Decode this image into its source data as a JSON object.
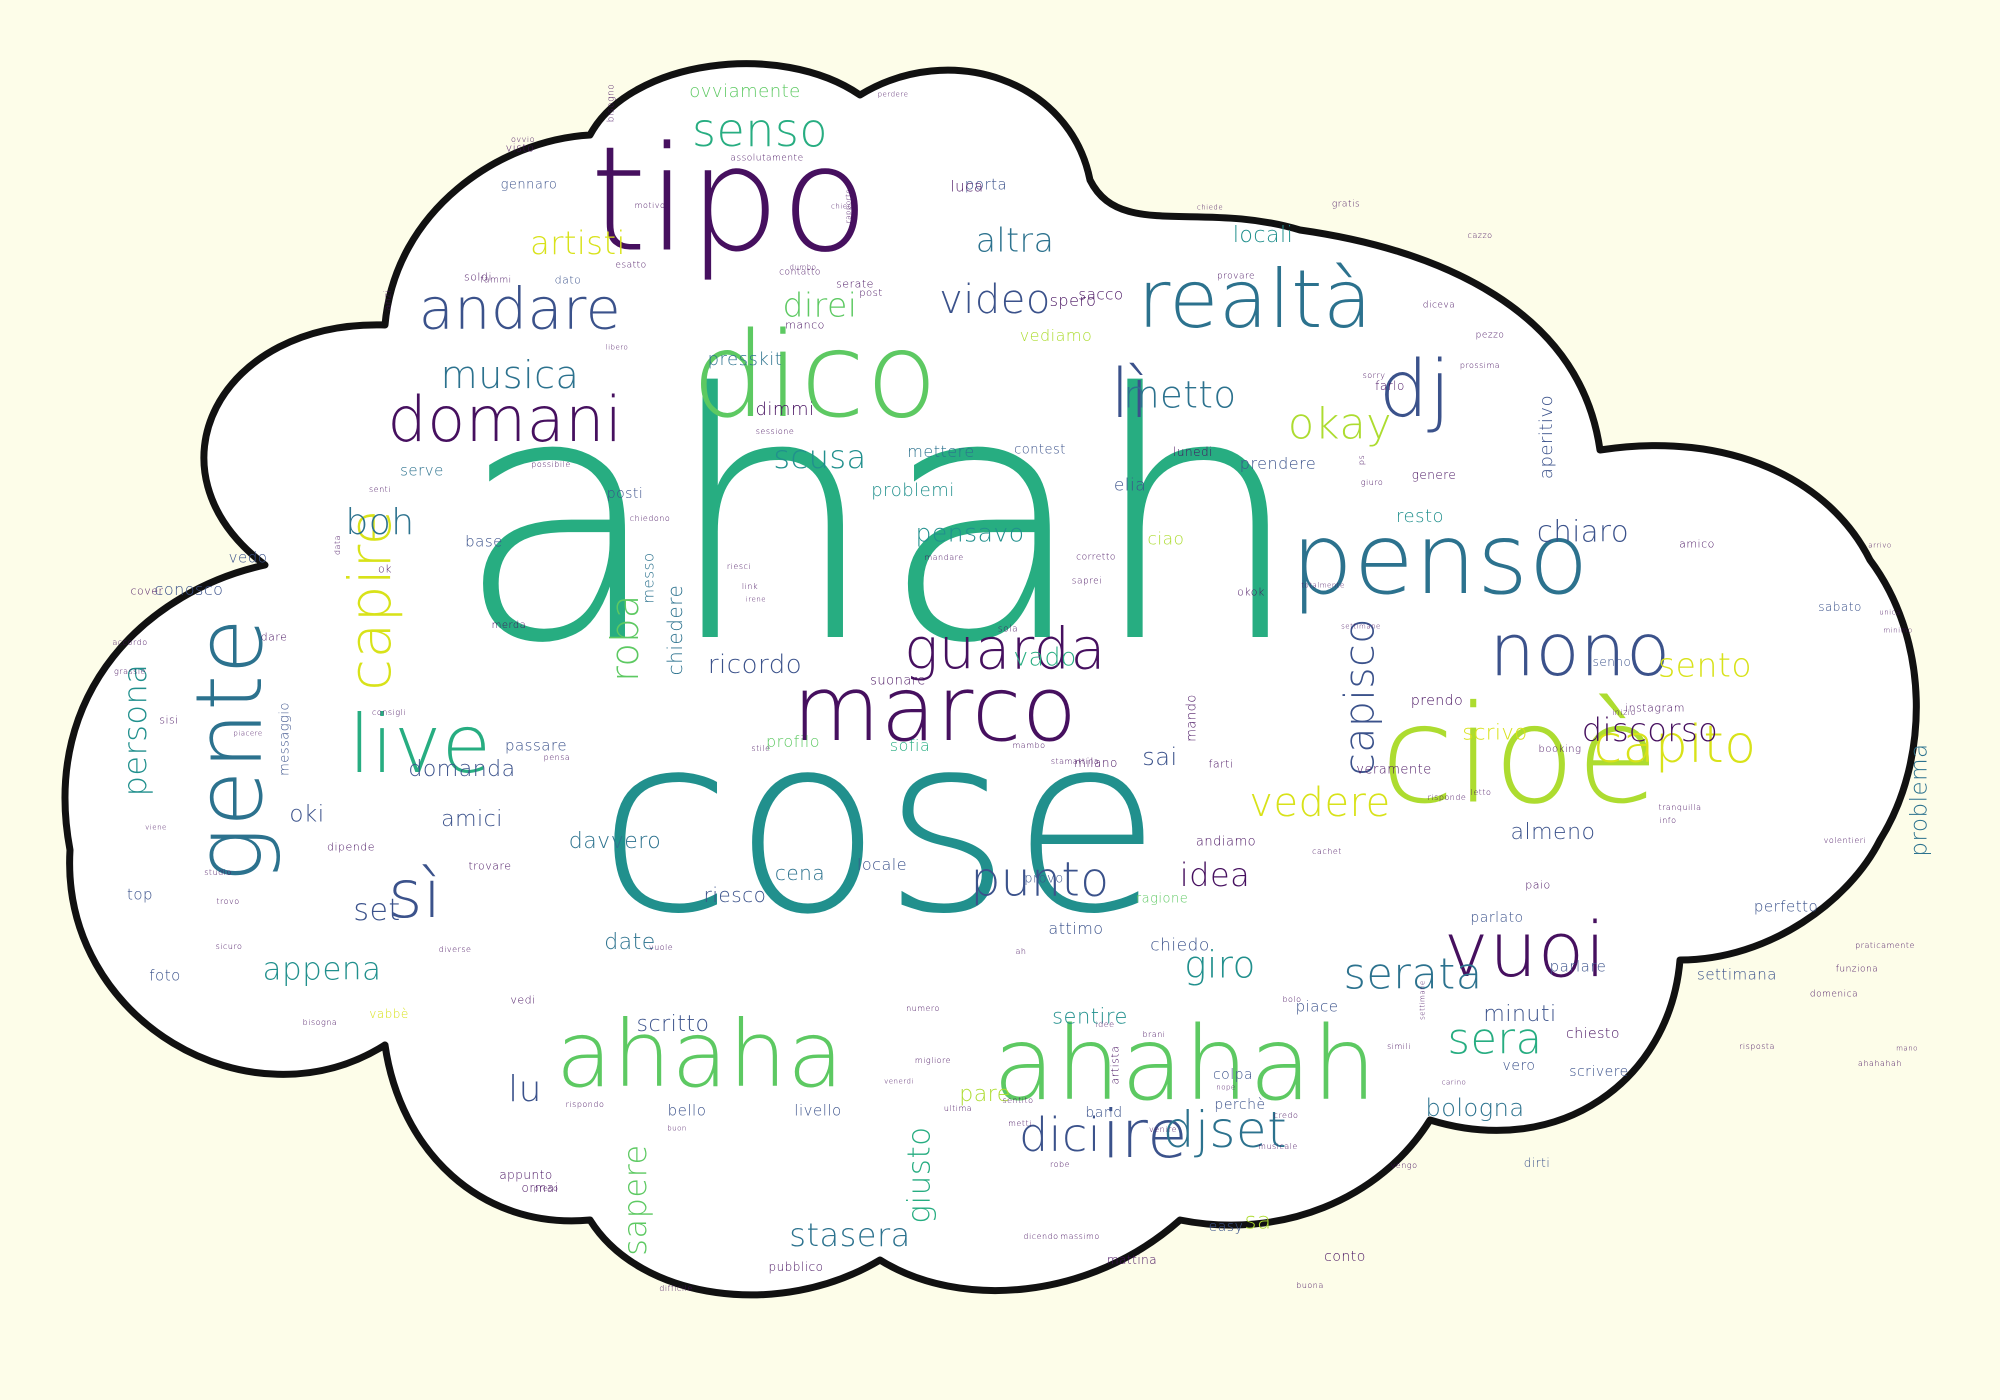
{
  "palette": {
    "background": "#fdfde9",
    "cloud_fill": "#ffffff",
    "cloud_outline": "#111111",
    "word_colors": [
      "#46105f",
      "#3b528b",
      "#2c728e",
      "#21908d",
      "#27ad81",
      "#5dc962",
      "#addc30",
      "#d8e219"
    ]
  },
  "words": [
    {
      "text": "ahah",
      "weight": 100,
      "c": 4
    },
    {
      "text": "cose",
      "weight": 86,
      "c": 3
    },
    {
      "text": "cioè",
      "weight": 55,
      "c": 6
    },
    {
      "text": "tipo",
      "weight": 52,
      "c": 0
    },
    {
      "text": "ahahah",
      "weight": 45,
      "c": 5
    },
    {
      "text": "dico",
      "weight": 42,
      "c": 5
    },
    {
      "text": "marco",
      "weight": 36,
      "c": 0
    },
    {
      "text": "penso",
      "weight": 36,
      "c": 2
    },
    {
      "text": "ahaha",
      "weight": 35,
      "c": 5
    },
    {
      "text": "gente",
      "weight": 35,
      "c": 2
    },
    {
      "text": "realtà",
      "weight": 33,
      "c": 2
    },
    {
      "text": "vuoi",
      "weight": 31,
      "c": 0
    },
    {
      "text": "live",
      "weight": 30,
      "c": 4
    },
    {
      "text": "dj",
      "weight": 30,
      "c": 1
    },
    {
      "text": "nono",
      "weight": 30,
      "c": 1
    },
    {
      "text": "domani",
      "weight": 28,
      "c": 0
    },
    {
      "text": "andare",
      "weight": 27,
      "c": 1
    },
    {
      "text": "sì",
      "weight": 27,
      "c": 1
    },
    {
      "text": "capire",
      "weight": 26,
      "c": 7
    },
    {
      "text": "guarda",
      "weight": 25,
      "c": 0
    },
    {
      "text": "lì",
      "weight": 25,
      "c": 1
    },
    {
      "text": "ire",
      "weight": 24,
      "c": 1
    },
    {
      "text": "senso",
      "weight": 22,
      "c": 4
    },
    {
      "text": "djset",
      "weight": 22,
      "c": 2
    },
    {
      "text": "capito",
      "weight": 22,
      "c": 7
    },
    {
      "text": "punto",
      "weight": 22,
      "c": 1
    },
    {
      "text": "serata",
      "weight": 20,
      "c": 2
    },
    {
      "text": "sera",
      "weight": 20,
      "c": 4
    },
    {
      "text": "musica",
      "weight": 20,
      "c": 2
    },
    {
      "text": "video",
      "weight": 20,
      "c": 1
    },
    {
      "text": "persona",
      "weight": 20,
      "c": 3
    },
    {
      "text": "vedere",
      "weight": 19,
      "c": 7
    },
    {
      "text": "metto",
      "weight": 19,
      "c": 2
    },
    {
      "text": "dici",
      "weight": 19,
      "c": 1
    },
    {
      "text": "artisti",
      "weight": 19,
      "c": 7
    },
    {
      "text": "okay",
      "weight": 18,
      "c": 6
    },
    {
      "text": "scusa",
      "weight": 18,
      "c": 3
    },
    {
      "text": "capisco",
      "weight": 18,
      "c": 1
    },
    {
      "text": "altra",
      "weight": 18,
      "c": 2
    },
    {
      "text": "giro",
      "weight": 18,
      "c": 3
    },
    {
      "text": "sento",
      "weight": 18,
      "c": 7
    },
    {
      "text": "discorso",
      "weight": 17,
      "c": 0
    },
    {
      "text": "roba",
      "weight": 17,
      "c": 5
    },
    {
      "text": "direi",
      "weight": 17,
      "c": 5
    },
    {
      "text": "stasera",
      "weight": 17,
      "c": 2
    },
    {
      "text": "sapere",
      "weight": 17,
      "c": 5
    },
    {
      "text": "boh",
      "weight": 17,
      "c": 2
    },
    {
      "text": "appena",
      "weight": 17,
      "c": 3
    },
    {
      "text": "set",
      "weight": 16,
      "c": 1
    },
    {
      "text": "pensavo",
      "weight": 16,
      "c": 3
    },
    {
      "text": "ricordo",
      "weight": 16,
      "c": 1
    },
    {
      "text": "idea",
      "weight": 16,
      "c": 0
    },
    {
      "text": "lu",
      "weight": 16,
      "c": 1
    },
    {
      "text": "chiaro",
      "weight": 16,
      "c": 1
    },
    {
      "text": "giusto",
      "weight": 15,
      "c": 4
    },
    {
      "text": "bologna",
      "weight": 14,
      "c": 2
    },
    {
      "text": "sa",
      "weight": 14,
      "c": 6
    },
    {
      "text": "sai",
      "weight": 14,
      "c": 1
    },
    {
      "text": "oki",
      "weight": 14,
      "c": 1
    },
    {
      "text": "vado",
      "weight": 14,
      "c": 4
    },
    {
      "text": "davvero",
      "weight": 13,
      "c": 2
    },
    {
      "text": "scritto",
      "weight": 13,
      "c": 1
    },
    {
      "text": "date",
      "weight": 13,
      "c": 2
    },
    {
      "text": "domanda",
      "weight": 13,
      "c": 1
    },
    {
      "text": "problema",
      "weight": 13,
      "c": 2
    },
    {
      "text": "scrivo",
      "weight": 13,
      "c": 7
    },
    {
      "text": "amici",
      "weight": 13,
      "c": 1
    },
    {
      "text": "almeno",
      "weight": 13,
      "c": 1
    },
    {
      "text": "chiedere",
      "weight": 12,
      "c": 2
    },
    {
      "text": "sentire",
      "weight": 12,
      "c": 3
    },
    {
      "text": "cena",
      "weight": 12,
      "c": 2
    },
    {
      "text": "riesco",
      "weight": 12,
      "c": 1
    },
    {
      "text": "problemi",
      "weight": 12,
      "c": 3
    },
    {
      "text": "aperitivo",
      "weight": 12,
      "c": 1
    },
    {
      "text": "locali",
      "weight": 12,
      "c": 3
    },
    {
      "text": "minuti",
      "weight": 12,
      "c": 1
    },
    {
      "text": "presskit",
      "weight": 12,
      "c": 2
    },
    {
      "text": "ovviamente",
      "weight": 11,
      "c": 5
    },
    {
      "text": "pare",
      "weight": 11,
      "c": 6
    },
    {
      "text": "elia",
      "weight": 11,
      "c": 1
    },
    {
      "text": "resto",
      "weight": 11,
      "c": 3
    },
    {
      "text": "dimmi",
      "weight": 11,
      "c": 0
    },
    {
      "text": "vediamo",
      "weight": 11,
      "c": 6
    },
    {
      "text": "profilo",
      "weight": 11,
      "c": 5
    },
    {
      "text": "conosco",
      "weight": 10,
      "c": 1
    },
    {
      "text": "attimo",
      "weight": 10,
      "c": 1
    },
    {
      "text": "chiedo",
      "weight": 10,
      "c": 1
    },
    {
      "text": "spero",
      "weight": 10,
      "c": 0
    },
    {
      "text": "locale",
      "weight": 10,
      "c": 1
    },
    {
      "text": "serve",
      "weight": 10,
      "c": 2
    },
    {
      "text": "messo",
      "weight": 10,
      "c": 2
    },
    {
      "text": "posti",
      "weight": 10,
      "c": 1
    },
    {
      "text": "base",
      "weight": 10,
      "c": 1
    },
    {
      "text": "mettere",
      "weight": 10,
      "c": 2
    },
    {
      "text": "prendere",
      "weight": 10,
      "c": 1
    },
    {
      "text": "settimana",
      "weight": 9,
      "c": 1
    },
    {
      "text": "parlare",
      "weight": 9,
      "c": 1
    },
    {
      "text": "passare",
      "weight": 9,
      "c": 1
    },
    {
      "text": "porta",
      "weight": 9,
      "c": 1
    },
    {
      "text": "luca",
      "weight": 9,
      "c": 0
    },
    {
      "text": "ciao",
      "weight": 9,
      "c": 6
    },
    {
      "text": "sofia",
      "weight": 9,
      "c": 4
    },
    {
      "text": "perfetto",
      "weight": 9,
      "c": 1
    },
    {
      "text": "foto",
      "weight": 9,
      "c": 1
    },
    {
      "text": "top",
      "weight": 9,
      "c": 1
    },
    {
      "text": "vedo",
      "weight": 9,
      "c": 1
    },
    {
      "text": "piace",
      "weight": 9,
      "c": 1
    },
    {
      "text": "bello",
      "weight": 9,
      "c": 1
    },
    {
      "text": "livello",
      "weight": 9,
      "c": 1
    },
    {
      "text": "sacco",
      "weight": 9,
      "c": 0
    },
    {
      "text": "vero",
      "weight": 9,
      "c": 1
    },
    {
      "text": "parlato",
      "weight": 8,
      "c": 1
    },
    {
      "text": "veramente",
      "weight": 8,
      "c": 0
    },
    {
      "text": "contest",
      "weight": 8,
      "c": 1
    },
    {
      "text": "provo",
      "weight": 8,
      "c": 1
    },
    {
      "text": "andiamo",
      "weight": 8,
      "c": 0
    },
    {
      "text": "prendo",
      "weight": 8,
      "c": 0
    },
    {
      "text": "scrivere",
      "weight": 9,
      "c": 1
    },
    {
      "text": "chiesto",
      "weight": 8,
      "c": 0
    },
    {
      "text": "colpa",
      "weight": 8,
      "c": 1
    },
    {
      "text": "band",
      "weight": 9,
      "c": 1
    },
    {
      "text": "perchè",
      "weight": 8,
      "c": 1
    },
    {
      "text": "conto",
      "weight": 8,
      "c": 0
    },
    {
      "text": "mando",
      "weight": 8,
      "c": 0
    },
    {
      "text": "easy",
      "weight": 8,
      "c": 1
    },
    {
      "text": "messaggio",
      "weight": 8,
      "c": 1
    },
    {
      "text": "gennaro",
      "weight": 8,
      "c": 1
    },
    {
      "text": "soldi",
      "weight": 7,
      "c": 0
    },
    {
      "text": "dato",
      "weight": 7,
      "c": 1
    },
    {
      "text": "sabato",
      "weight": 7,
      "c": 1
    },
    {
      "text": "amico",
      "weight": 7,
      "c": 0
    },
    {
      "text": "senno",
      "weight": 7,
      "c": 1
    },
    {
      "text": "milano",
      "weight": 7,
      "c": 0
    },
    {
      "text": "pubblico",
      "weight": 7,
      "c": 0
    },
    {
      "text": "appunto",
      "weight": 7,
      "c": 0
    },
    {
      "text": "ragione",
      "weight": 7,
      "c": 5
    },
    {
      "text": "suonare",
      "weight": 7,
      "c": 0
    },
    {
      "text": "dirti",
      "weight": 7,
      "c": 1
    },
    {
      "text": "ormai",
      "weight": 7,
      "c": 0
    },
    {
      "text": "lunedi",
      "weight": 7,
      "c": 0
    },
    {
      "text": "genere",
      "weight": 7,
      "c": 0
    },
    {
      "text": "farlo",
      "weight": 7,
      "c": 0
    },
    {
      "text": "dare",
      "weight": 6,
      "c": 0
    },
    {
      "text": "ok",
      "weight": 6,
      "c": 0
    },
    {
      "text": "sisi",
      "weight": 6,
      "c": 0
    },
    {
      "text": "cover",
      "weight": 6,
      "c": 0
    },
    {
      "text": "visto",
      "weight": 6,
      "c": 0
    },
    {
      "text": "mattina",
      "weight": 6,
      "c": 0
    },
    {
      "text": "vedi",
      "weight": 6,
      "c": 0
    },
    {
      "text": "farti",
      "weight": 6,
      "c": 0
    },
    {
      "text": "dipende",
      "weight": 6,
      "c": 0
    },
    {
      "text": "okok",
      "weight": 6,
      "c": 0
    },
    {
      "text": "trovare",
      "weight": 6,
      "c": 0
    },
    {
      "text": "merda",
      "weight": 6,
      "c": 0
    },
    {
      "text": "manco",
      "weight": 6,
      "c": 0
    },
    {
      "text": "vabbè",
      "weight": 6,
      "c": 7
    },
    {
      "text": "artista",
      "weight": 6,
      "c": 0
    },
    {
      "text": "paio",
      "weight": 6,
      "c": 0
    },
    {
      "text": "instagram",
      "weight": 6,
      "c": 0
    },
    {
      "text": "booking",
      "weight": 6,
      "c": 0
    },
    {
      "text": "fammi",
      "weight": 5,
      "c": 0
    },
    {
      "text": "esatto",
      "weight": 5,
      "c": 0
    },
    {
      "text": "contatto",
      "weight": 5,
      "c": 0
    },
    {
      "text": "provare",
      "weight": 5,
      "c": 0
    },
    {
      "text": "gratis",
      "weight": 5,
      "c": 0
    },
    {
      "text": "diceva",
      "weight": 5,
      "c": 0
    },
    {
      "text": "pezzo",
      "weight": 5,
      "c": 0
    },
    {
      "text": "bisogno",
      "weight": 5,
      "c": 0
    },
    {
      "text": "assolutamente",
      "weight": 5,
      "c": 0
    },
    {
      "text": "anzi",
      "weight": 5,
      "c": 0
    },
    {
      "text": "sessione",
      "weight": 4,
      "c": 0
    },
    {
      "text": "possibile",
      "weight": 4,
      "c": 0
    },
    {
      "text": "senti",
      "weight": 4,
      "c": 0
    },
    {
      "text": "chiedono",
      "weight": 4,
      "c": 0
    },
    {
      "text": "mandare",
      "weight": 4,
      "c": 0
    },
    {
      "text": "corretto",
      "weight": 4,
      "c": 0
    },
    {
      "text": "saprei",
      "weight": 5,
      "c": 0
    },
    {
      "text": "link",
      "weight": 5,
      "c": 0
    },
    {
      "text": "sola",
      "weight": 4,
      "c": 0
    },
    {
      "text": "data",
      "weight": 5,
      "c": 0
    },
    {
      "text": "accordo",
      "weight": 4,
      "c": 0
    },
    {
      "text": "grassie",
      "weight": 4,
      "c": 0
    },
    {
      "text": "consigli",
      "weight": 4,
      "c": 0
    },
    {
      "text": "sicuro",
      "weight": 4,
      "c": 0
    },
    {
      "text": "diverse",
      "weight": 4,
      "c": 0
    },
    {
      "text": "bisogna",
      "weight": 4,
      "c": 0
    },
    {
      "text": "pensa",
      "weight": 4,
      "c": 0
    },
    {
      "text": "stile",
      "weight": 4,
      "c": 0
    },
    {
      "text": "mambo",
      "weight": 4,
      "c": 0
    },
    {
      "text": "stamattina",
      "weight": 5,
      "c": 0
    },
    {
      "text": "letto",
      "weight": 4,
      "c": 0
    },
    {
      "text": "risponde",
      "weight": 4,
      "c": 0
    },
    {
      "text": "cachet",
      "weight": 4,
      "c": 0
    },
    {
      "text": "bolo",
      "weight": 4,
      "c": 0
    },
    {
      "text": "credo",
      "weight": 4,
      "c": 0
    },
    {
      "text": "rispondo",
      "weight": 5,
      "c": 0
    },
    {
      "text": "migliore",
      "weight": 4,
      "c": 0
    },
    {
      "text": "numero",
      "weight": 4,
      "c": 0
    },
    {
      "text": "idee",
      "weight": 4,
      "c": 0
    },
    {
      "text": "ultima",
      "weight": 4,
      "c": 0
    },
    {
      "text": "metti",
      "weight": 4,
      "c": 0
    },
    {
      "text": "venire",
      "weight": 4,
      "c": 0
    },
    {
      "text": "robe",
      "weight": 4,
      "c": 0
    },
    {
      "text": "musicale",
      "weight": 4,
      "c": 0
    },
    {
      "text": "vengo",
      "weight": 4,
      "c": 0
    },
    {
      "text": "difficile",
      "weight": 4,
      "c": 0
    },
    {
      "text": "preso",
      "weight": 4,
      "c": 0
    },
    {
      "text": "dicendo",
      "weight": 4,
      "c": 0
    },
    {
      "text": "massimo",
      "weight": 4,
      "c": 0
    },
    {
      "text": "buona",
      "weight": 4,
      "c": 0
    },
    {
      "text": "ahahahah",
      "weight": 4,
      "c": 0
    },
    {
      "text": "mano",
      "weight": 3,
      "c": 0
    },
    {
      "text": "risposta",
      "weight": 5,
      "c": 0
    },
    {
      "text": "brani",
      "weight": 3,
      "c": 0
    },
    {
      "text": "domenica",
      "weight": 4,
      "c": 0
    },
    {
      "text": "funziona",
      "weight": 4,
      "c": 0
    },
    {
      "text": "volentieri",
      "weight": 5,
      "c": 0
    },
    {
      "text": "praticamente",
      "weight": 5,
      "c": 0
    },
    {
      "text": "tranquilla",
      "weight": 4,
      "c": 0
    },
    {
      "text": "info",
      "weight": 4,
      "c": 0
    },
    {
      "text": "giuro",
      "weight": 4,
      "c": 0
    },
    {
      "text": "ps",
      "weight": 5,
      "c": 0
    },
    {
      "text": "sorry",
      "weight": 4,
      "c": 0
    },
    {
      "text": "prossima",
      "weight": 4,
      "c": 0
    },
    {
      "text": "arrivo",
      "weight": 4,
      "c": 0
    },
    {
      "text": "unica",
      "weight": 4,
      "c": 0
    },
    {
      "text": "minimo",
      "weight": 3,
      "c": 0
    },
    {
      "text": "inizio",
      "weight": 3,
      "c": 0
    },
    {
      "text": "trovo",
      "weight": 3,
      "c": 0
    },
    {
      "text": "studio",
      "weight": 4,
      "c": 0
    },
    {
      "text": "viene",
      "weight": 4,
      "c": 0
    },
    {
      "text": "piacere",
      "weight": 4,
      "c": 0
    },
    {
      "text": "ovvio",
      "weight": 3,
      "c": 0
    },
    {
      "text": "chiede",
      "weight": 3,
      "c": 0
    },
    {
      "text": "dumbo",
      "weight": 4,
      "c": 0
    },
    {
      "text": "chiedi",
      "weight": 3,
      "c": 0
    },
    {
      "text": "rapporto",
      "weight": 3,
      "c": 0
    },
    {
      "text": "perdere",
      "weight": 3,
      "c": 0
    },
    {
      "text": "motivo",
      "weight": 3,
      "c": 0
    },
    {
      "text": "cazzo",
      "weight": 4,
      "c": 0
    },
    {
      "text": "libero",
      "weight": 4,
      "c": 0
    },
    {
      "text": "buon",
      "weight": 3,
      "c": 0
    },
    {
      "text": "venerdi",
      "weight": 3,
      "c": 0
    },
    {
      "text": "carino",
      "weight": 3,
      "c": 0
    },
    {
      "text": "settimane",
      "weight": 3,
      "c": 0
    },
    {
      "text": "settimane",
      "weight": 3,
      "c": 0
    },
    {
      "text": "totalmente",
      "weight": 3,
      "c": 0
    },
    {
      "text": "post",
      "weight": 3,
      "c": 0
    },
    {
      "text": "serate",
      "weight": 3,
      "c": 0
    },
    {
      "text": "irene",
      "weight": 5,
      "c": 0
    },
    {
      "text": "ah",
      "weight": 5,
      "c": 0
    },
    {
      "text": "nope",
      "weight": 3,
      "c": 0
    },
    {
      "text": "simili",
      "weight": 4,
      "c": 0
    },
    {
      "text": "vuole",
      "weight": 3,
      "c": 0
    },
    {
      "text": "riesci",
      "weight": 4,
      "c": 0
    },
    {
      "text": "sentito",
      "weight": 4,
      "c": 0
    },
    {
      "text": "arrivare",
      "weight": 4,
      "c": 0
    },
    {
      "text": "maniera",
      "weight": 4,
      "c": 0
    }
  ]
}
